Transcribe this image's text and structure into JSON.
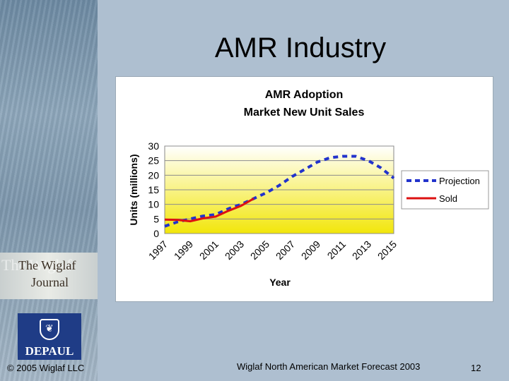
{
  "slide": {
    "title": "AMR Industry",
    "footer_left": "© 2005 Wiglaf LLC",
    "footer_center": "Wiglaf North American Market Forecast 2003",
    "page_number": "12"
  },
  "logos": {
    "journal_line1": "The Wiglaf",
    "journal_line2": "Journal",
    "depaul": "DEPAUL"
  },
  "colors": {
    "projection": "#2233cc",
    "sold": "#dd1111",
    "plot_top": "#ffffff",
    "plot_bottom": "#f2e60a"
  },
  "chart_data": {
    "type": "line",
    "title": "AMR Adoption",
    "subtitle": "Market New Unit Sales",
    "xlabel": "Year",
    "ylabel": "Units (millions)",
    "xlim": [
      1997,
      2015
    ],
    "ylim": [
      0,
      30
    ],
    "yticks": [
      0,
      5,
      10,
      15,
      20,
      25,
      30
    ],
    "xticks": [
      "1997",
      "1999",
      "2001",
      "2003",
      "2005",
      "2007",
      "2009",
      "2011",
      "2013",
      "2015"
    ],
    "grid": true,
    "legend_position": "right",
    "series": [
      {
        "name": "Projection",
        "style": "dashed",
        "x": [
          1997,
          1998,
          1999,
          2000,
          2001,
          2002,
          2003,
          2004,
          2005,
          2006,
          2007,
          2008,
          2009,
          2010,
          2011,
          2012,
          2013,
          2014,
          2015
        ],
        "y": [
          2.5,
          4,
          5,
          6,
          6.5,
          8.5,
          10,
          12,
          14,
          16.5,
          19.5,
          22,
          24.5,
          26,
          26.5,
          26.5,
          25,
          22.5,
          19
        ]
      },
      {
        "name": "Sold",
        "style": "solid",
        "x": [
          1997,
          1998,
          1999,
          2000,
          2001,
          2002,
          2003,
          2004
        ],
        "y": [
          4.8,
          4.7,
          4.2,
          5.2,
          5.8,
          7.8,
          9.5,
          12
        ]
      }
    ]
  }
}
